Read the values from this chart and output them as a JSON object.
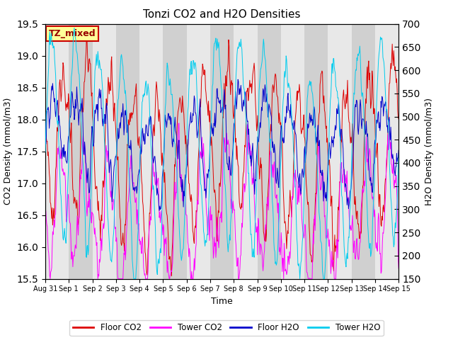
{
  "title": "Tonzi CO2 and H2O Densities",
  "xlabel": "Time",
  "ylabel_left": "CO2 Density (mmol/m3)",
  "ylabel_right": "H2O Density (mmol/m3)",
  "ylim_left": [
    15.5,
    19.5
  ],
  "ylim_right": [
    150,
    700
  ],
  "yticks_left": [
    15.5,
    16.0,
    16.5,
    17.0,
    17.5,
    18.0,
    18.5,
    19.0,
    19.5
  ],
  "yticks_right": [
    150,
    200,
    250,
    300,
    350,
    400,
    450,
    500,
    550,
    600,
    650,
    700
  ],
  "xtick_labels": [
    "Aug 31",
    "Sep 1",
    "Sep 2",
    "Sep 3",
    "Sep 4",
    "Sep 5",
    "Sep 6",
    "Sep 7",
    "Sep 8",
    "Sep 9",
    "Sep 10",
    "Sep 11",
    "Sep 12",
    "Sep 13",
    "Sep 14",
    "Sep 15"
  ],
  "colors": {
    "floor_co2": "#dd0000",
    "tower_co2": "#ff00ff",
    "floor_h2o": "#0000cc",
    "tower_h2o": "#00ccee"
  },
  "legend_labels": [
    "Floor CO2",
    "Tower CO2",
    "Floor H2O",
    "Tower H2O"
  ],
  "annotation_text": "TZ_mixed",
  "annotation_color": "#990000",
  "annotation_bg": "#ffff99",
  "annotation_border": "#cc0000",
  "n_days": 15,
  "points_per_day": 48,
  "seed": 12345
}
